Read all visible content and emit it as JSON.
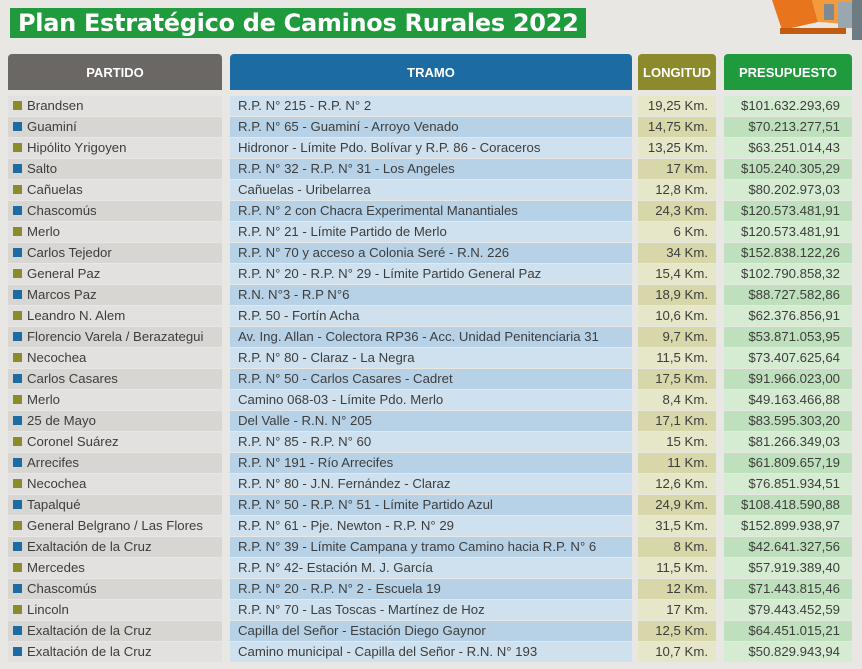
{
  "title": "Plan Estratégico de Caminos Rurales 2022",
  "colors": {
    "title_bg": "#1f9a3c",
    "partido_header": "#6b6765",
    "tramo_header": "#1d6ba3",
    "longitud_header": "#8b8b2c",
    "presupuesto_header": "#1f9a3c",
    "bullet_olive": "#8b8b2c",
    "bullet_blue": "#1d6ba3"
  },
  "headers": {
    "partido": "PARTIDO",
    "tramo": "TRAMO",
    "longitud": "LONGITUD",
    "presupuesto": "PRESUPUESTO"
  },
  "rows": [
    {
      "partido": "Brandsen",
      "tramo": "R.P. N° 215 - R.P. N° 2",
      "longitud": "19,25 Km.",
      "presupuesto": "$101.632.293,69",
      "bullet": "olive"
    },
    {
      "partido": "Guaminí",
      "tramo": "R.P. N° 65 - Guaminí - Arroyo Venado",
      "longitud": "14,75 Km.",
      "presupuesto": "$70.213.277,51",
      "bullet": "blue"
    },
    {
      "partido": "Hipólito Yrigoyen",
      "tramo": "Hidronor - Límite Pdo. Bolívar y R.P. 86 - Coraceros",
      "longitud": "13,25 Km.",
      "presupuesto": "$63.251.014,43",
      "bullet": "olive"
    },
    {
      "partido": "Salto",
      "tramo": "R.P. N° 32 - R.P. N° 31 - Los Angeles",
      "longitud": "17 Km.",
      "presupuesto": "$105.240.305,29",
      "bullet": "blue"
    },
    {
      "partido": "Cañuelas",
      "tramo": "Cañuelas - Uribelarrea",
      "longitud": "12,8 Km.",
      "presupuesto": "$80.202.973,03",
      "bullet": "olive"
    },
    {
      "partido": "Chascomús",
      "tramo": "R.P. N° 2 con Chacra Experimental Manantiales",
      "longitud": "24,3 Km.",
      "presupuesto": "$120.573.481,91",
      "bullet": "blue"
    },
    {
      "partido": "Merlo",
      "tramo": "R.P. N° 21 - Límite Partido de Merlo",
      "longitud": "6 Km.",
      "presupuesto": "$120.573.481,91",
      "bullet": "olive"
    },
    {
      "partido": "Carlos Tejedor",
      "tramo": "R.P. N° 70 y acceso a Colonia Seré - R.N. 226",
      "longitud": "34 Km.",
      "presupuesto": "$152.838.122,26",
      "bullet": "blue"
    },
    {
      "partido": "General Paz",
      "tramo": "R.P. N° 20 - R.P. N° 29 - Límite Partido General Paz",
      "longitud": "15,4 Km.",
      "presupuesto": "$102.790.858,32",
      "bullet": "olive"
    },
    {
      "partido": "Marcos Paz",
      "tramo": "R.N. N°3 - R.P N°6",
      "longitud": "18,9 Km.",
      "presupuesto": "$88.727.582,86",
      "bullet": "blue"
    },
    {
      "partido": "Leandro N. Alem",
      "tramo": "R.P. 50 - Fortín Acha",
      "longitud": "10,6 Km.",
      "presupuesto": "$62.376.856,91",
      "bullet": "olive"
    },
    {
      "partido": "Florencio Varela / Berazategui",
      "tramo": "Av. Ing. Allan - Colectora RP36 - Acc. Unidad Penitenciaria 31",
      "longitud": "9,7 Km.",
      "presupuesto": "$53.871.053,95",
      "bullet": "blue"
    },
    {
      "partido": "Necochea",
      "tramo": "R.P. N° 80 - Claraz - La Negra",
      "longitud": "11,5 Km.",
      "presupuesto": "$73.407.625,64",
      "bullet": "olive"
    },
    {
      "partido": "Carlos Casares",
      "tramo": "R.P. N° 50 - Carlos Casares - Cadret",
      "longitud": "17,5 Km.",
      "presupuesto": "$91.966.023,00",
      "bullet": "blue"
    },
    {
      "partido": "Merlo",
      "tramo": "Camino 068-03 - Límite Pdo. Merlo",
      "longitud": "8,4 Km.",
      "presupuesto": "$49.163.466,88",
      "bullet": "olive"
    },
    {
      "partido": "25 de Mayo",
      "tramo": "Del Valle - R.N. N° 205",
      "longitud": "17,1 Km.",
      "presupuesto": "$83.595.303,20",
      "bullet": "blue"
    },
    {
      "partido": "Coronel Suárez",
      "tramo": "R.P. N° 85 - R.P. N° 60",
      "longitud": "15 Km.",
      "presupuesto": "$81.266.349,03",
      "bullet": "olive"
    },
    {
      "partido": "Arrecifes",
      "tramo": "R.P. N° 191 - Río Arrecifes",
      "longitud": "11 Km.",
      "presupuesto": "$61.809.657,19",
      "bullet": "blue"
    },
    {
      "partido": "Necochea",
      "tramo": "R.P. N° 80 - J.N. Fernández - Claraz",
      "longitud": "12,6 Km.",
      "presupuesto": "$76.851.934,51",
      "bullet": "olive"
    },
    {
      "partido": "Tapalqué",
      "tramo": "R.P. N° 50 - R.P. N° 51 - Límite Partido Azul",
      "longitud": "24,9 Km.",
      "presupuesto": "$108.418.590,88",
      "bullet": "blue"
    },
    {
      "partido": "General Belgrano / Las Flores",
      "tramo": "R.P. N° 61 - Pje. Newton - R.P. N° 29",
      "longitud": "31,5 Km.",
      "presupuesto": "$152.899.938,97",
      "bullet": "olive"
    },
    {
      "partido": "Exaltación de la Cruz",
      "tramo": "R.P. N° 39 - Límite Campana y tramo Camino hacia R.P. N° 6",
      "longitud": "8 Km.",
      "presupuesto": "$42.641.327,56",
      "bullet": "blue"
    },
    {
      "partido": "Mercedes",
      "tramo": "R.P. N° 42- Estación M. J. García",
      "longitud": "11,5 Km.",
      "presupuesto": "$57.919.389,40",
      "bullet": "olive"
    },
    {
      "partido": "Chascomús",
      "tramo": "R.P. N° 20 - R.P. N° 2 - Escuela 19",
      "longitud": "12 Km.",
      "presupuesto": "$71.443.815,46",
      "bullet": "blue"
    },
    {
      "partido": "Lincoln",
      "tramo": "R.P. N° 70 - Las Toscas - Martínez de Hoz",
      "longitud": "17 Km.",
      "presupuesto": "$79.443.452,59",
      "bullet": "olive"
    },
    {
      "partido": "Exaltación de la Cruz",
      "tramo": "Capilla del Señor - Estación Diego Gaynor",
      "longitud": "12,5 Km.",
      "presupuesto": "$64.451.015,21",
      "bullet": "blue"
    },
    {
      "partido": "Exaltación de la Cruz",
      "tramo": "Camino municipal - Capilla del Señor - R.N. N° 193",
      "longitud": "10,7 Km.",
      "presupuesto": "$50.829.943,94",
      "bullet": "blue"
    }
  ]
}
